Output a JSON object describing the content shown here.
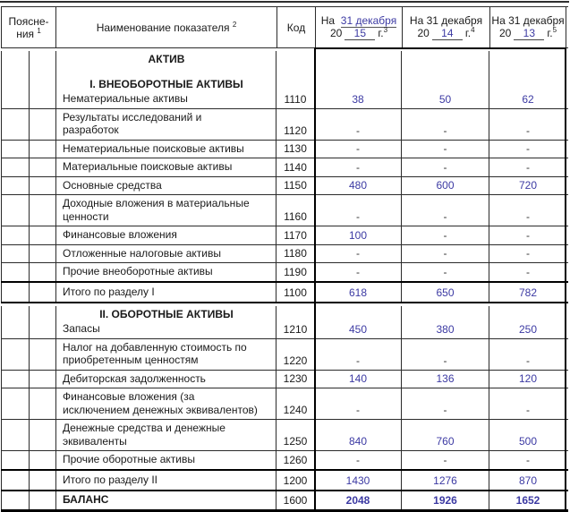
{
  "accent_blue": "#3c3aa3",
  "header": {
    "note": {
      "line1": "Поясне-",
      "line2": "ния",
      "sup": "1"
    },
    "name": {
      "label": "Наименование показателя",
      "sup": "2"
    },
    "code": "Код",
    "date_cols": [
      {
        "prefix": "На",
        "date": "31 декабря",
        "century": "20",
        "year": "15",
        "g": "г.",
        "sup": "3"
      },
      {
        "prefix": "На",
        "date": "31 декабря",
        "century": "20",
        "year": "14",
        "g": "г.",
        "sup": "4"
      },
      {
        "prefix": "На",
        "date": "31 декабря",
        "century": "20",
        "year": "13",
        "g": "г.",
        "sup": "5"
      }
    ]
  },
  "table": {
    "rows": [
      {
        "type": "section-data",
        "first": true,
        "sections": [
          "АКТИВ",
          "",
          "I. ВНЕОБОРОТНЫЕ АКТИВЫ"
        ],
        "name": "Нематериальные активы",
        "code": "1110",
        "values": [
          "38",
          "50",
          "62"
        ]
      },
      {
        "type": "data",
        "name": "Результаты исследований и разработок",
        "code": "1120",
        "values": [
          "-",
          "-",
          "-"
        ]
      },
      {
        "type": "data",
        "name": "Нематериальные поисковые активы",
        "code": "1130",
        "values": [
          "-",
          "-",
          "-"
        ]
      },
      {
        "type": "data",
        "name": "Материальные поисковые активы",
        "code": "1140",
        "values": [
          "-",
          "-",
          "-"
        ]
      },
      {
        "type": "data",
        "name": "Основные средства",
        "code": "1150",
        "values": [
          "480",
          "600",
          "720"
        ]
      },
      {
        "type": "data",
        "name": "Доходные вложения в материальные ценности",
        "code": "1160",
        "values": [
          "-",
          "-",
          "-"
        ]
      },
      {
        "type": "data",
        "name": "Финансовые вложения",
        "code": "1170",
        "values": [
          "100",
          "-",
          "-"
        ]
      },
      {
        "type": "data",
        "name": "Отложенные налоговые активы",
        "code": "1180",
        "values": [
          "-",
          "-",
          "-"
        ]
      },
      {
        "type": "data",
        "thick_bottom": true,
        "name": "Прочие внеоборотные активы",
        "code": "1190",
        "values": [
          "-",
          "-",
          "-"
        ]
      },
      {
        "type": "total",
        "thick_bottom": true,
        "name": "Итого по разделу I",
        "code": "1100",
        "values": [
          "618",
          "650",
          "782"
        ]
      },
      {
        "type": "section-data",
        "sections": [
          "II. ОБОРОТНЫЕ АКТИВЫ"
        ],
        "name": "Запасы",
        "code": "1210",
        "values": [
          "450",
          "380",
          "250"
        ]
      },
      {
        "type": "data",
        "name": "Налог на добавленную стоимость по приобретенным ценностям",
        "code": "1220",
        "values": [
          "-",
          "-",
          "-"
        ]
      },
      {
        "type": "data",
        "name": "Дебиторская задолженность",
        "code": "1230",
        "values": [
          "140",
          "136",
          "120"
        ]
      },
      {
        "type": "data",
        "name": "Финансовые вложения (за исключением денежных эквивалентов)",
        "code": "1240",
        "values": [
          "-",
          "-",
          "-"
        ]
      },
      {
        "type": "data",
        "name": "Денежные средства и денежные эквиваленты",
        "code": "1250",
        "values": [
          "840",
          "760",
          "500"
        ]
      },
      {
        "type": "data",
        "thick_bottom": true,
        "name": "Прочие оборотные активы",
        "code": "1260",
        "values": [
          "-",
          "-",
          "-"
        ]
      },
      {
        "type": "total",
        "thick_bottom": true,
        "name": "Итого по разделу II",
        "code": "1200",
        "values": [
          "1430",
          "1276",
          "870"
        ]
      },
      {
        "type": "balance",
        "table_end": true,
        "name": "БАЛАНС",
        "code": "1600",
        "values": [
          "2048",
          "1926",
          "1652"
        ]
      }
    ]
  }
}
